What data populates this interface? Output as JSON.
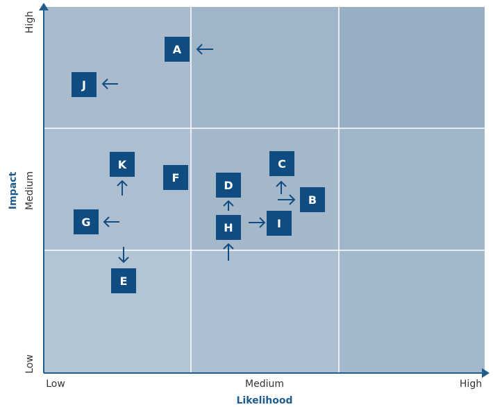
{
  "x_axis": {
    "title": "Likelihood",
    "levels": [
      "Low",
      "Medium",
      "High"
    ]
  },
  "y_axis": {
    "title": "Impact",
    "levels": [
      "Low",
      "Medium",
      "High"
    ]
  },
  "nodes": [
    {
      "label": "A"
    },
    {
      "label": "J"
    },
    {
      "label": "K"
    },
    {
      "label": "F"
    },
    {
      "label": "G"
    },
    {
      "label": "E"
    },
    {
      "label": "D"
    },
    {
      "label": "H"
    },
    {
      "label": "C"
    },
    {
      "label": "B"
    },
    {
      "label": "I"
    }
  ]
}
